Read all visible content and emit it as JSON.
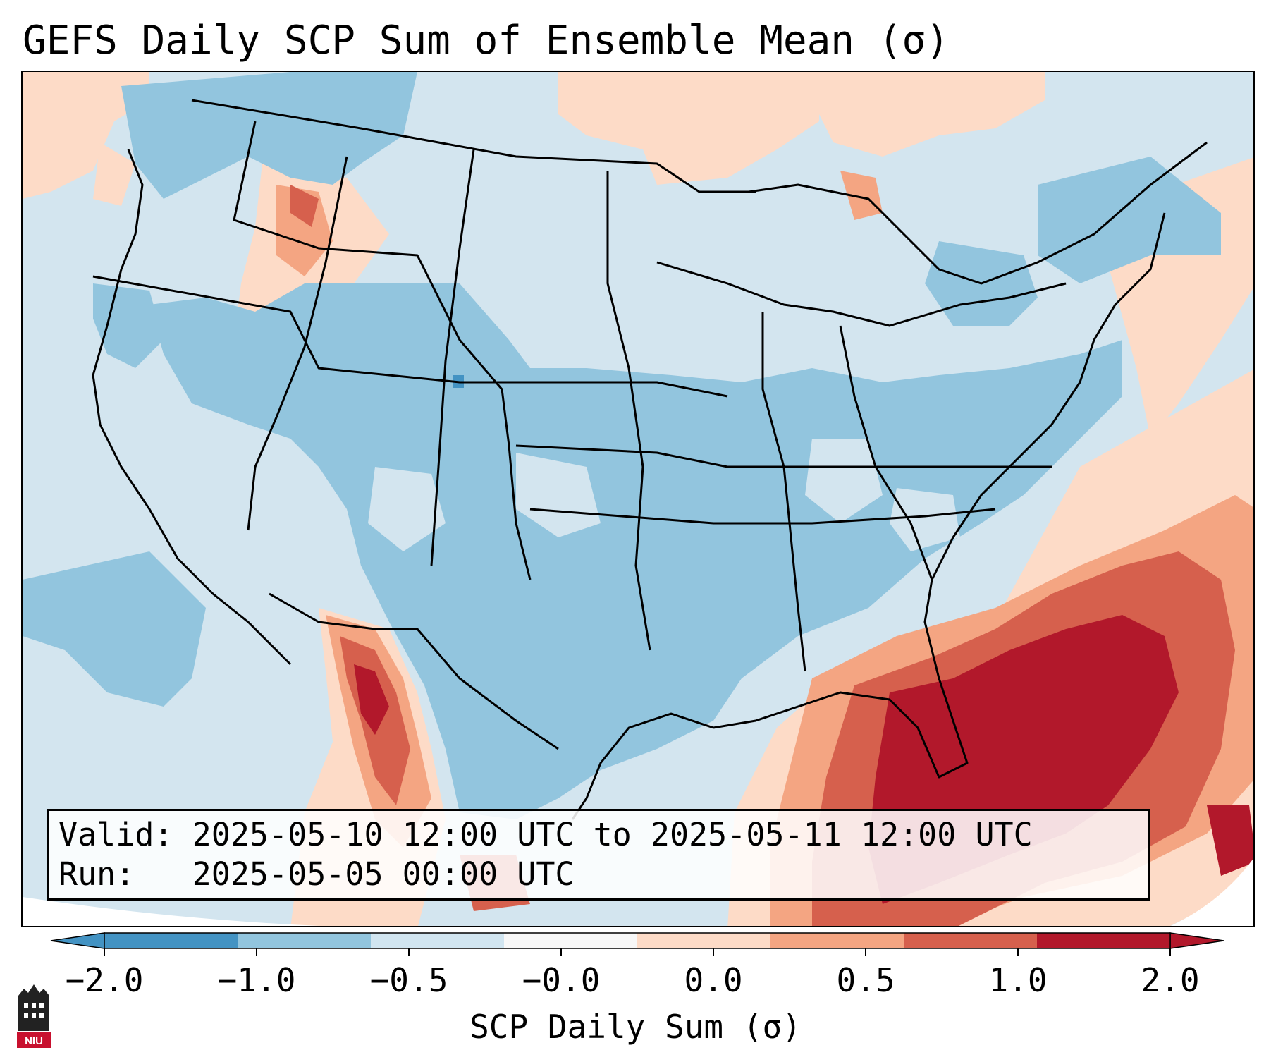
{
  "title": "GEFS Daily SCP Sum of Ensemble Mean (σ)",
  "info_box": {
    "valid_label": "Valid:",
    "valid_value": "2025-05-10 12:00 UTC to 2025-05-11 12:00 UTC",
    "run_label": "Run:",
    "run_value": "2025-05-05 00:00 UTC"
  },
  "colorbar": {
    "label": "SCP Daily Sum (σ)",
    "tick_labels": [
      "−2.0",
      "−1.0",
      "−0.5",
      "−0.0",
      "0.0",
      "0.5",
      "1.0",
      "2.0"
    ],
    "colors": [
      "#4393c3",
      "#92c5de",
      "#d1e5f0",
      "#f7f7f7",
      "#fddbc7",
      "#f4a582",
      "#d6604d",
      "#b2182b"
    ],
    "extend": "both"
  },
  "map": {
    "domain": "CONUS",
    "projection": "Lambert Conformal",
    "field": "SCP daily sum anomaly (σ)",
    "highlights": [
      {
        "region": "Florida and southeastern Gulf of Mexico",
        "category": "1.0 to 2.0"
      },
      {
        "region": "Western Atlantic off the Southeast coast",
        "category": "1.0 to 2.0"
      },
      {
        "region": "Northern Mexico / Sierra Madre",
        "category": "0.5 to 2.0"
      },
      {
        "region": "Idaho / western Montana",
        "category": "0.0 to 1.0"
      },
      {
        "region": "Upper Michigan / northern Great Lakes",
        "category": "0.0 to 1.0"
      },
      {
        "region": "Central and eastern US",
        "category": "-1.0 to -0.5"
      }
    ]
  },
  "logo": {
    "text": "NIU"
  }
}
